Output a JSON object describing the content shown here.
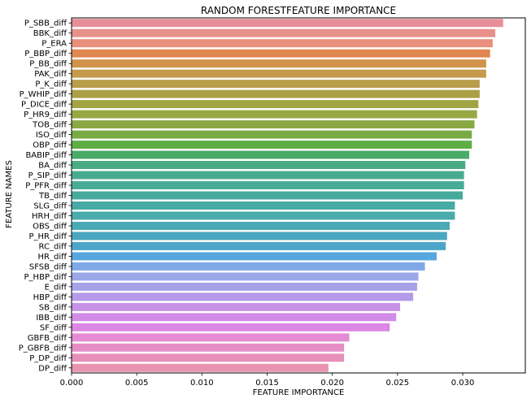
{
  "chart_data": {
    "type": "bar",
    "orientation": "horizontal",
    "title": "RANDOM FORESTFEATURE IMPORTANCE",
    "xlabel": "FEATURE IMPORTANCE",
    "ylabel": "FEATURE NAMES",
    "xlim": [
      0.0,
      0.0348
    ],
    "xticks": [
      "0.000",
      "0.005",
      "0.010",
      "0.015",
      "0.020",
      "0.025",
      "0.030"
    ],
    "grid": false,
    "legend": "none",
    "categories": [
      "P_SBB_diff",
      "BBK_diff",
      "P_ERA",
      "P_BBP_diff",
      "P_BB_diff",
      "PAK_diff",
      "P_K_diff",
      "P_WHIP_diff",
      "P_DICE_diff",
      "P_HR9_diff",
      "TOB_diff",
      "ISO_diff",
      "OBP_diff",
      "BABIP_diff",
      "BA_diff",
      "P_SIP_diff",
      "P_PFR_diff",
      "TB_diff",
      "SLG_diff",
      "HRH_diff",
      "OBS_diff",
      "P_HR_diff",
      "RC_diff",
      "HR_diff",
      "SFSB_diff",
      "P_HBP_diff",
      "E_diff",
      "HBP_diff",
      "SB_diff",
      "IBB_diff",
      "SF_diff",
      "GBFB_diff",
      "P_GBFB_diff",
      "P_DP_diff",
      "DP_diff"
    ],
    "values": [
      0.0331,
      0.0325,
      0.0323,
      0.0321,
      0.0318,
      0.0318,
      0.0313,
      0.0313,
      0.0312,
      0.0311,
      0.0309,
      0.0307,
      0.0307,
      0.0305,
      0.0302,
      0.0301,
      0.0301,
      0.03,
      0.0294,
      0.0294,
      0.029,
      0.0288,
      0.0287,
      0.028,
      0.0271,
      0.0266,
      0.0265,
      0.0262,
      0.0252,
      0.0249,
      0.0244,
      0.0213,
      0.0209,
      0.0209,
      0.0197
    ],
    "colors": [
      "#e88e98",
      "#e8908a",
      "#e8907c",
      "#e0884f",
      "#d1924a",
      "#c59a4c",
      "#b89d4a",
      "#aba045",
      "#a2a443",
      "#97a843",
      "#8aa843",
      "#78ab43",
      "#5fad45",
      "#4aab69",
      "#49ab82",
      "#48ab90",
      "#47ab97",
      "#47a99c",
      "#48aaa4",
      "#49abab",
      "#4aaab5",
      "#4ba7bf",
      "#4ea5c9",
      "#58a6de",
      "#7ea9e6",
      "#9aa7e8",
      "#a6a2e8",
      "#b49ae8",
      "#c691e6",
      "#d28be6",
      "#dc87e4",
      "#e58bd4",
      "#e58ec6",
      "#e78fba",
      "#e993b0"
    ]
  }
}
